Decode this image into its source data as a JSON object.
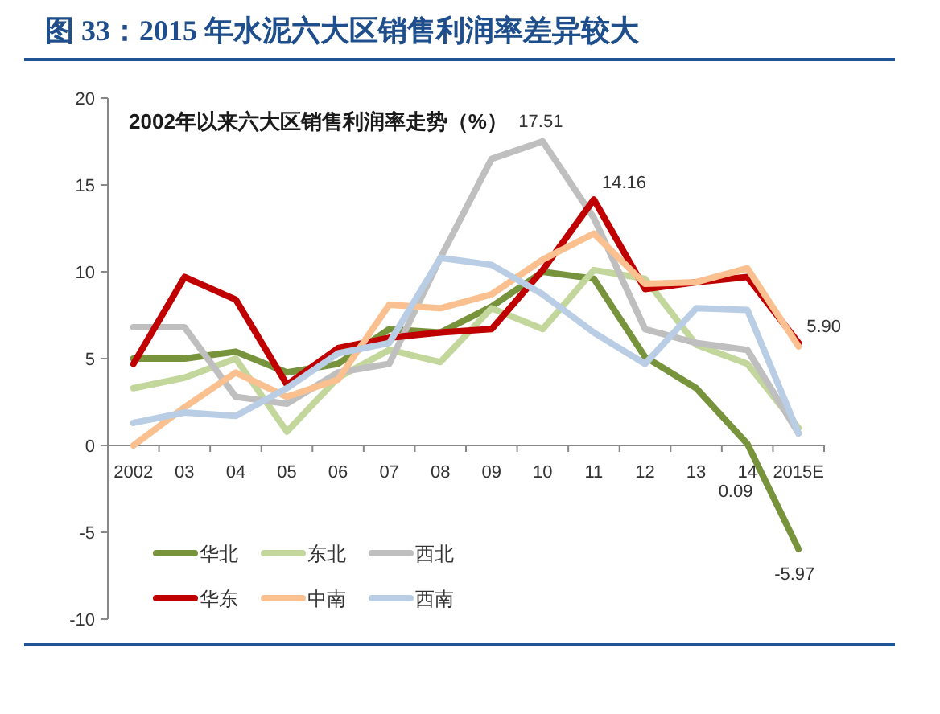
{
  "chart_data": {
    "type": "line",
    "title": "图 33：2015 年水泥六大区销售利润率差异较大",
    "subtitle": "2002年以来六大区销售利润率走势（%）",
    "categories": [
      "2002",
      "03",
      "04",
      "05",
      "06",
      "07",
      "08",
      "09",
      "10",
      "11",
      "12",
      "13",
      "14",
      "2015E"
    ],
    "series": [
      {
        "name": "华北",
        "color": "#77933c",
        "values": [
          5.0,
          5.0,
          5.4,
          4.2,
          4.7,
          6.7,
          6.5,
          8.0,
          10.0,
          9.6,
          5.1,
          3.3,
          0.09,
          -5.97
        ],
        "value_labels": [
          null,
          null,
          null,
          null,
          null,
          null,
          null,
          null,
          null,
          null,
          null,
          null,
          "0.09",
          "-5.97"
        ]
      },
      {
        "name": "东北",
        "color": "#c3d69b",
        "values": [
          3.3,
          3.9,
          5.0,
          0.8,
          3.9,
          5.5,
          4.8,
          7.9,
          6.7,
          10.1,
          9.6,
          5.8,
          4.7,
          1.0
        ]
      },
      {
        "name": "西北",
        "color": "#bfbfbf",
        "values": [
          6.8,
          6.8,
          2.8,
          2.4,
          4.2,
          4.7,
          10.8,
          16.5,
          17.51,
          13.1,
          6.7,
          5.9,
          5.5,
          0.7
        ],
        "value_labels": [
          null,
          null,
          null,
          null,
          null,
          null,
          null,
          null,
          "17.51",
          null,
          null,
          null,
          null,
          null
        ]
      },
      {
        "name": "华东",
        "color": "#c00000",
        "values": [
          4.7,
          9.7,
          8.4,
          3.5,
          5.6,
          6.2,
          6.5,
          6.7,
          10.1,
          14.16,
          9.0,
          9.4,
          9.7,
          5.9
        ],
        "value_labels": [
          null,
          null,
          null,
          null,
          null,
          null,
          null,
          null,
          null,
          "14.16",
          null,
          null,
          null,
          "5.90"
        ]
      },
      {
        "name": "中南",
        "color": "#fac090",
        "values": [
          0.0,
          2.2,
          4.2,
          2.8,
          3.8,
          8.1,
          7.9,
          8.7,
          10.7,
          12.2,
          9.3,
          9.4,
          10.2,
          5.7
        ]
      },
      {
        "name": "西南",
        "color": "#b9cde5",
        "values": [
          1.3,
          1.9,
          1.7,
          3.3,
          5.3,
          5.9,
          10.8,
          10.4,
          8.7,
          6.5,
          4.7,
          7.9,
          7.8,
          0.7
        ]
      }
    ],
    "ylim": [
      -10,
      20
    ],
    "yticks": [
      -10,
      -5,
      0,
      5,
      10,
      15,
      20
    ],
    "legend": "bottom left",
    "line_style": "solid"
  }
}
